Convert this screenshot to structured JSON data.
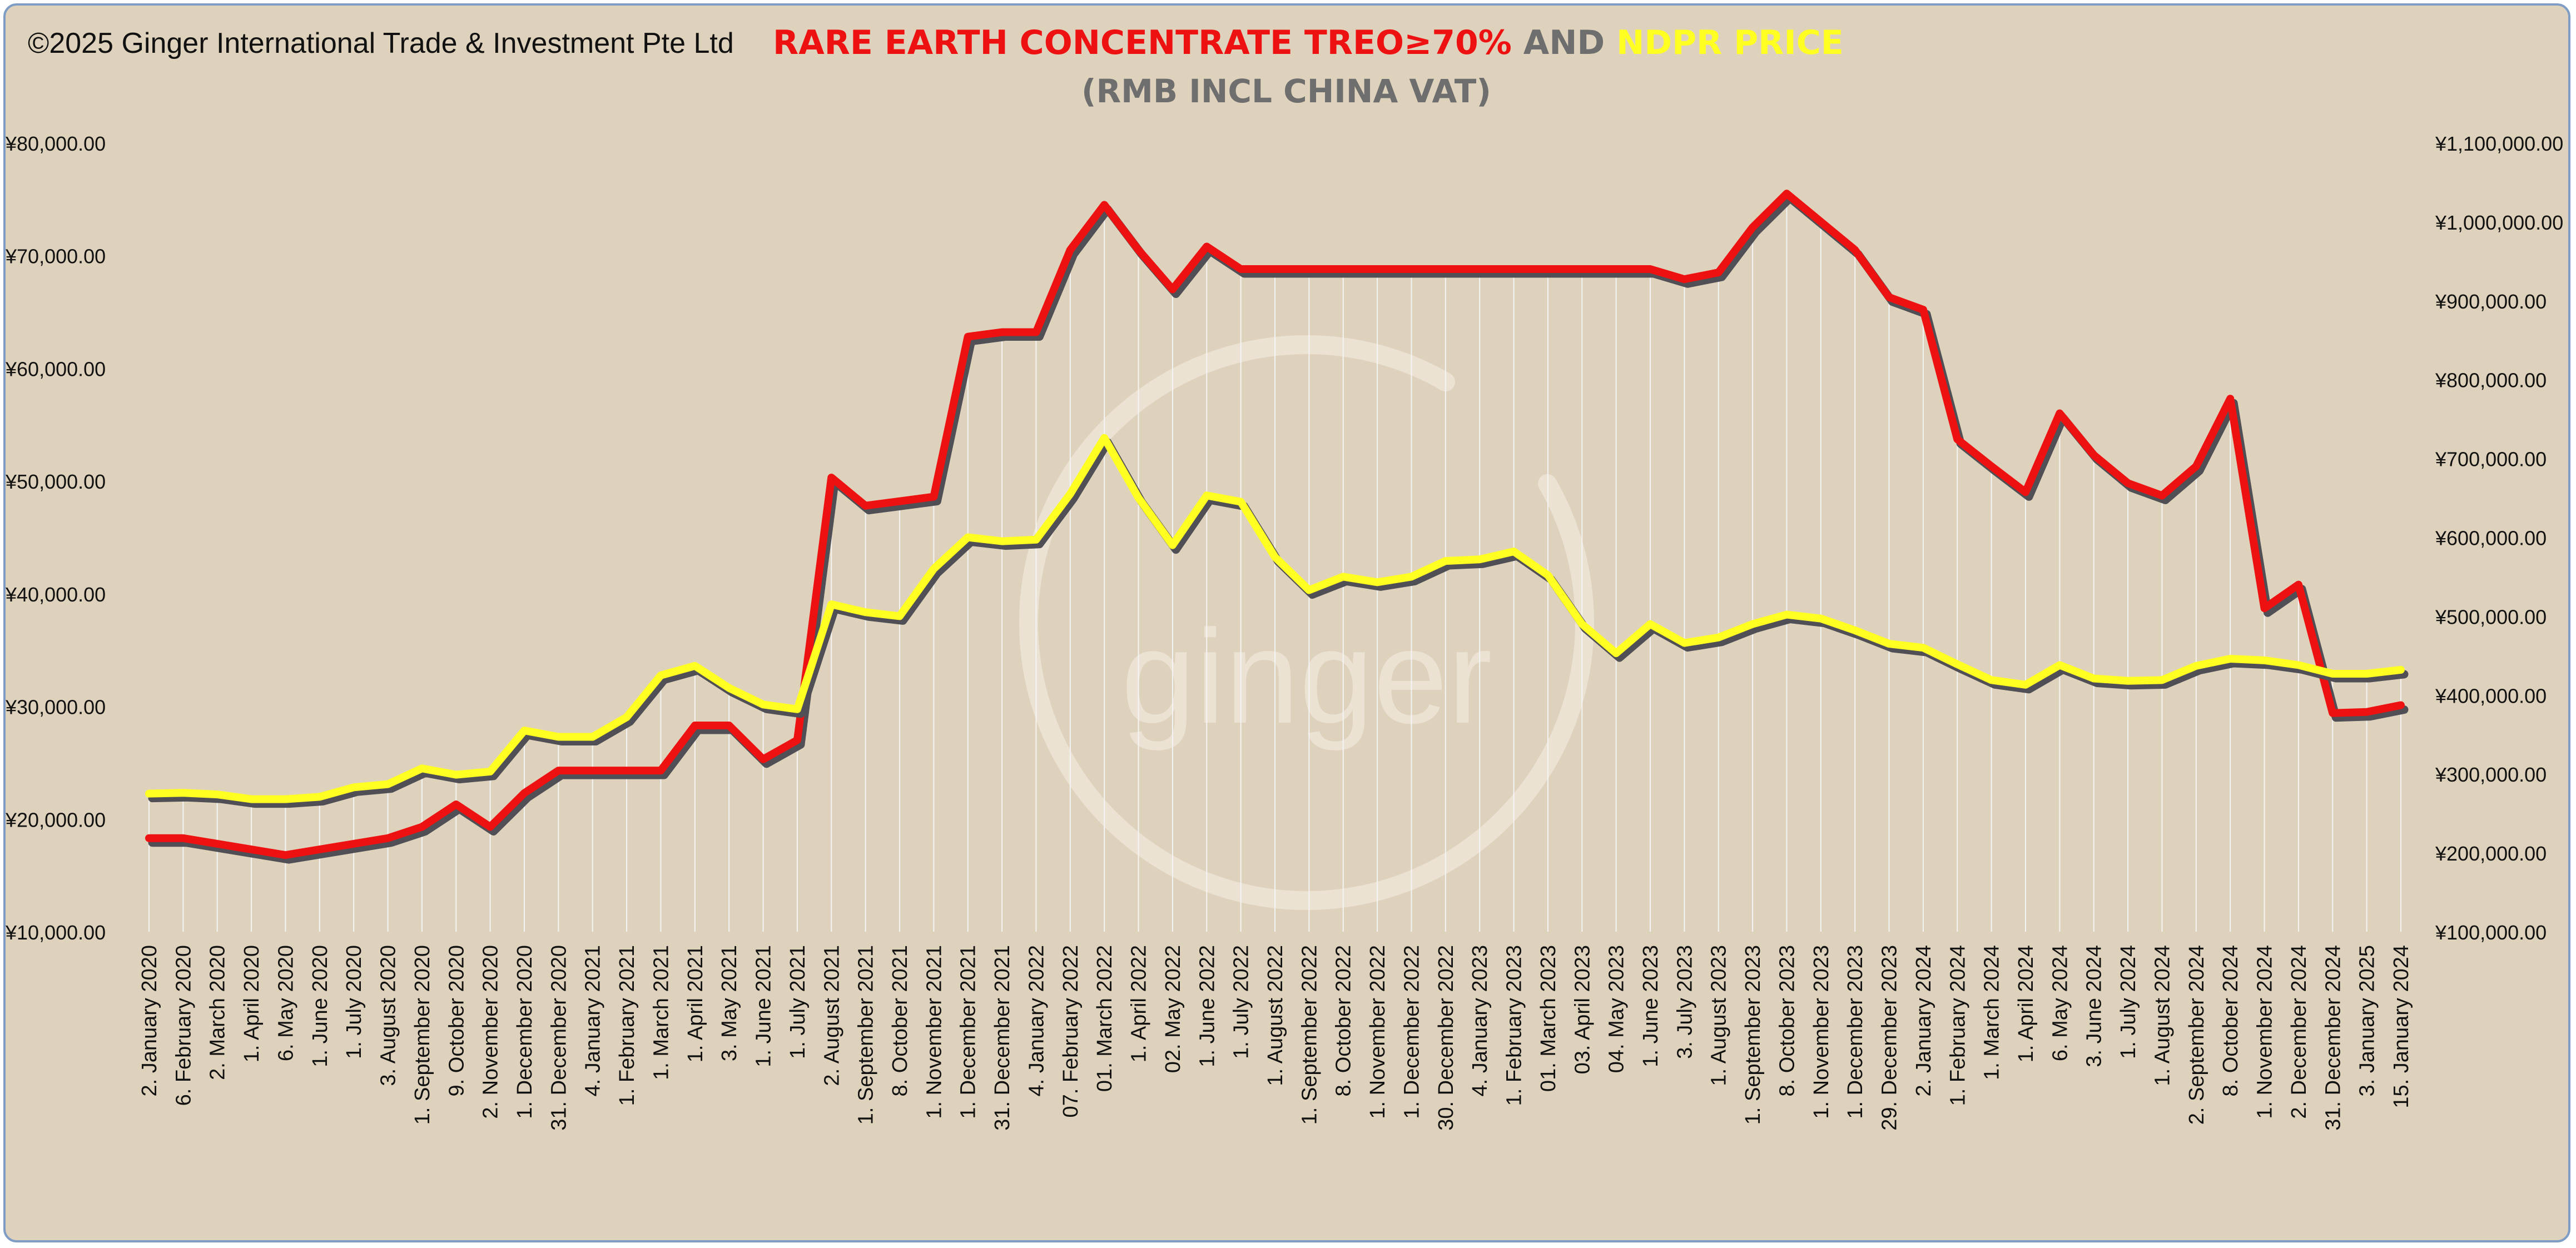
{
  "copyright": "©2025 Ginger International Trade & Investment Pte Ltd",
  "title": {
    "part1": "RARE EARTH CONCENTRATE TREO≥70%",
    "part1_color": "#ee1111",
    "part2": " AND ",
    "part2_color": "#6e6e6e",
    "part3": "NDPR PRICE",
    "part3_color": "#ffff22",
    "subtitle": "(RMB INCL CHINA VAT)",
    "subtitle_color": "#6e6e6e"
  },
  "watermark": "ginger",
  "colors": {
    "background": "#dfd2bc",
    "border": "#7f9cc4",
    "series_treo": "#ee1111",
    "series_ndpr": "#ffff22",
    "shadow": "#4f4f55",
    "droplines": "#f4f4f4"
  },
  "chart_data": {
    "type": "line",
    "title": "RARE EARTH CONCENTRATE TREO≥70% AND NDPR PRICE (RMB INCL CHINA VAT)",
    "xlabel": "",
    "ylabel_left": "",
    "ylabel_right": "",
    "grid": false,
    "legend": "none",
    "ylim_left": [
      10000,
      80000
    ],
    "ylim_right": [
      100000,
      1100000
    ],
    "yticks_left": [
      "¥10,000.00",
      "¥20,000.00",
      "¥30,000.00",
      "¥40,000.00",
      "¥50,000.00",
      "¥60,000.00",
      "¥70,000.00",
      "¥80,000.00"
    ],
    "yticks_right": [
      "¥100,000.00",
      "¥200,000.00",
      "¥300,000.00",
      "¥400,000.00",
      "¥500,000.00",
      "¥600,000.00",
      "¥700,000.00",
      "¥800,000.00",
      "¥900,000.00",
      "¥1,000,000.00",
      "¥1,100,000.00"
    ],
    "categories": [
      "2. January 2020",
      "6. February 2020",
      "2. March 2020",
      "1. April 2020",
      "6. May 2020",
      "1. June 2020",
      "1. July 2020",
      "3. August 2020",
      "1. September 2020",
      "9. October 2020",
      "2. November 2020",
      "1. December 2020",
      "31. December 2020",
      "4. January 2021",
      "1. February 2021",
      "1. March 2021",
      "1. April 2021",
      "3. May 2021",
      "1. June 2021",
      "1. July 2021",
      "2. August 2021",
      "1. September 2021",
      "8. October 2021",
      "1. November 2021",
      "1. December 2021",
      "31. December 2021",
      "4. January 2022",
      "07. February 2022",
      "01. March 2022",
      "1. April 2022",
      "02. May 2022",
      "1. June 2022",
      "1. July 2022",
      "1. August 2022",
      "1. September 2022",
      "8. October 2022",
      "1. November 2022",
      "1. December 2022",
      "30. December 2022",
      "4. January 2023",
      "1. February 2023",
      "01. March 2023",
      "03. April 2023",
      "04. May 2023",
      "1. June 2023",
      "3. July 2023",
      "1. August 2023",
      "1. September 2023",
      "8. October 2023",
      "1. November 2023",
      "1. December 2023",
      "29. December 2023",
      "2. January 2024",
      "1. February 2024",
      "1. March 2024",
      "1. April 2024",
      "6. May 2024",
      "3. June 2024",
      "1. July 2024",
      "1. August 2024",
      "2. September 2024",
      "8. October 2024",
      "1. November 2024",
      "2. December 2024",
      "31. December 2024",
      "3. January 2025",
      "15. January 2024"
    ],
    "series": [
      {
        "name": "Rare Earth Concentrate TREO≥70%",
        "axis": "left",
        "color": "#ee1111",
        "values": [
          18300,
          18300,
          17800,
          17300,
          16800,
          17300,
          17800,
          18300,
          19300,
          21300,
          19300,
          22300,
          24300,
          24300,
          24300,
          24300,
          28300,
          28300,
          25300,
          27000,
          50300,
          47800,
          48200,
          48600,
          62800,
          63200,
          63200,
          70500,
          74500,
          70500,
          67000,
          70800,
          68800,
          68800,
          68800,
          68800,
          68800,
          68800,
          68800,
          68800,
          68800,
          68800,
          68800,
          68800,
          68800,
          67900,
          68500,
          72500,
          75500,
          73000,
          70500,
          66300,
          65200,
          53700,
          51300,
          49000,
          56000,
          52300,
          49800,
          48700,
          51300,
          57300,
          38700,
          40800,
          29400,
          29500,
          30100
        ]
      },
      {
        "name": "NdPr Price",
        "axis": "right",
        "color": "#ffff22",
        "values": [
          275000,
          276000,
          274000,
          268000,
          268000,
          271000,
          283000,
          287000,
          307000,
          299000,
          303000,
          355000,
          347000,
          347000,
          372000,
          425000,
          437000,
          409000,
          388000,
          382000,
          515000,
          505000,
          500000,
          560000,
          600000,
          595000,
          597000,
          655000,
          726000,
          650000,
          590000,
          653000,
          645000,
          575000,
          533000,
          550000,
          543000,
          550000,
          570000,
          572000,
          582000,
          552000,
          490000,
          453000,
          490000,
          466000,
          473000,
          490000,
          502000,
          497000,
          482000,
          465000,
          460000,
          439000,
          419000,
          413000,
          438000,
          421000,
          418000,
          419000,
          437000,
          446000,
          444000,
          438000,
          427000,
          427000,
          432000
        ]
      }
    ]
  }
}
